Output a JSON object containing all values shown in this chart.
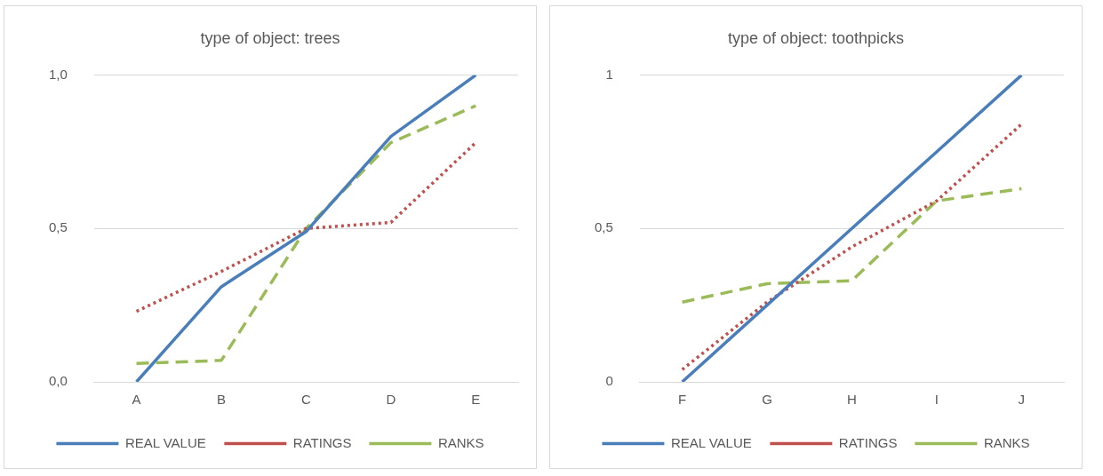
{
  "chart_data": [
    {
      "type": "line",
      "title": "type of object: trees",
      "categories": [
        "A",
        "B",
        "C",
        "D",
        "E"
      ],
      "ylim": [
        0,
        1
      ],
      "yticks": [
        {
          "value": 0,
          "label": "0,0"
        },
        {
          "value": 0.5,
          "label": "0,5"
        },
        {
          "value": 1,
          "label": "1,0"
        }
      ],
      "grid": "y",
      "legend": "bottom",
      "marker": "none",
      "series": [
        {
          "name": "REAL VALUE",
          "color": "#4a7ebb",
          "line_style": "solid",
          "values": [
            0,
            0.31,
            0.49,
            0.8,
            1
          ]
        },
        {
          "name": "RATINGS",
          "color": "#c0504d",
          "line_style": "dotted",
          "values": [
            0.23,
            0.36,
            0.5,
            0.52,
            0.78
          ]
        },
        {
          "name": "RANKS",
          "color": "#9bbb59",
          "line_style": "dashed",
          "values": [
            0.06,
            0.07,
            0.5,
            0.78,
            0.9
          ]
        }
      ]
    },
    {
      "type": "line",
      "title": "type of object: toothpicks",
      "categories": [
        "F",
        "G",
        "H",
        "I",
        "J"
      ],
      "ylim": [
        0,
        1
      ],
      "yticks": [
        {
          "value": 0,
          "label": "0"
        },
        {
          "value": 0.5,
          "label": "0,5"
        },
        {
          "value": 1,
          "label": "1"
        }
      ],
      "grid": "y",
      "legend": "bottom",
      "marker": "none",
      "series": [
        {
          "name": "REAL VALUE",
          "color": "#4a7ebb",
          "line_style": "solid",
          "values": [
            0,
            0.25,
            0.5,
            0.75,
            1
          ]
        },
        {
          "name": "RATINGS",
          "color": "#c0504d",
          "line_style": "dotted",
          "values": [
            0.04,
            0.26,
            0.44,
            0.59,
            0.84
          ]
        },
        {
          "name": "RANKS",
          "color": "#9bbb59",
          "line_style": "dashed",
          "values": [
            0.26,
            0.32,
            0.33,
            0.59,
            0.63
          ]
        }
      ]
    }
  ]
}
